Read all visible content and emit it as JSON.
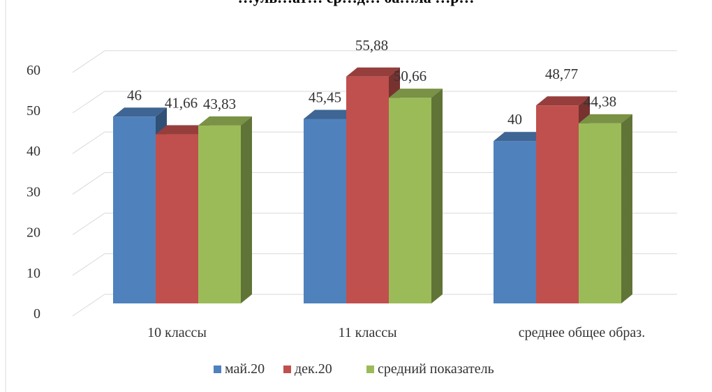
{
  "chart_data": {
    "type": "bar",
    "title": "…уль…ат… ср…д… ба…ла …р…",
    "xlabel": "",
    "ylabel": "",
    "categories": [
      "10 классы",
      "11 классы",
      "среднее общее образ."
    ],
    "series": [
      {
        "name": "май.20",
        "values": [
          46,
          45.45,
          40
        ],
        "labels": [
          "46",
          "45,45",
          "40"
        ],
        "color": "#4f81bd"
      },
      {
        "name": "дек.20",
        "values": [
          41.66,
          55.88,
          48.77
        ],
        "labels": [
          "41,66",
          "55,88",
          "48,77"
        ],
        "color": "#c0504d"
      },
      {
        "name": "средний показатель",
        "values": [
          43.83,
          50.66,
          44.38
        ],
        "labels": [
          "43,83",
          "50,66",
          "44,38"
        ],
        "color": "#9bbb59"
      }
    ],
    "ylim": [
      0,
      60
    ],
    "yticks": [
      "0",
      "10",
      "20",
      "30",
      "40",
      "50",
      "60"
    ],
    "grid": true,
    "legend_position": "bottom",
    "style": "3d-clustered-column"
  }
}
